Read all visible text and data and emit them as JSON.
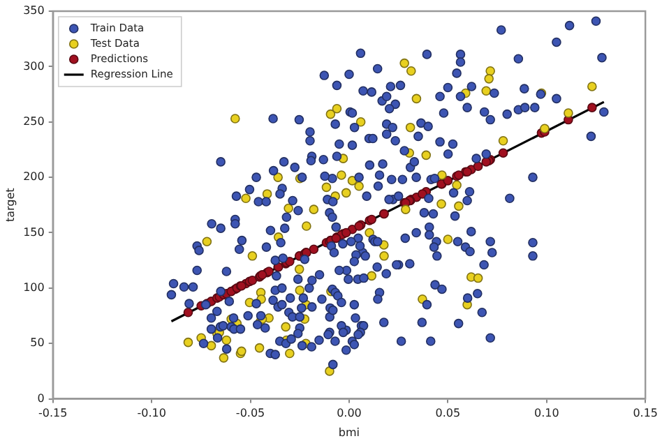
{
  "chart_data": {
    "type": "scatter",
    "xlabel": "bmi",
    "ylabel": "target",
    "xlim": [
      -0.15,
      0.15
    ],
    "ylim": [
      0,
      350
    ],
    "xticks": [
      {
        "value": -0.15,
        "label": "-0.15"
      },
      {
        "value": -0.1,
        "label": "-0.10"
      },
      {
        "value": -0.05,
        "label": "-0.05"
      },
      {
        "value": 0,
        "label": "0.00"
      },
      {
        "value": 0.05,
        "label": "0.05"
      },
      {
        "value": 0.1,
        "label": "0.10"
      },
      {
        "value": 0.15,
        "label": "0.15"
      }
    ],
    "yticks": [
      0,
      50,
      100,
      150,
      200,
      250,
      300,
      350
    ],
    "grid": false,
    "legend": "top left",
    "series": [
      {
        "name": "Train Data",
        "marker": "circle",
        "color": "#3d55b3",
        "x": [
          0.077,
          0.1116,
          0.125,
          0.105,
          0.128,
          0.0857,
          0.0058,
          0.0394,
          0.0564,
          0.0564,
          0.0144,
          0.0545,
          0.0,
          -0.0062,
          0.021,
          0.026,
          0.0071,
          0.0114,
          0.05,
          0.062,
          0.0735,
          0.0887,
          0.105,
          0.097,
          0.0167,
          0.019,
          0.0234,
          0.046,
          0.0564,
          0.0204,
          0.0005,
          0.0016,
          0.0479,
          0.0598,
          0.0685,
          0.0715,
          0.08,
          0.0857,
          0.089,
          0.094,
          0.129,
          -0.007,
          0.0027,
          0.019,
          0.022,
          0.0364,
          0.04,
          0.0101,
          0.012,
          0.0234,
          0.019,
          0.035,
          0.046,
          0.0525,
          -0.005,
          0.0016,
          0.028,
          0.0501,
          0.0694,
          0.0644,
          0.1225,
          -0.0062,
          0.0104,
          0.017,
          0.031,
          0.033,
          0.0415,
          0.0433,
          0.0154,
          0.0215,
          0.027,
          0.034,
          0.005,
          -0.0085,
          0.093,
          0.0813,
          0.0147,
          0.0089,
          0.0222,
          0.0202,
          0.025,
          0.0403,
          0.0529,
          0.061,
          0.0598,
          0.0536,
          0.038,
          0.0426,
          -0.0126,
          -0.0385,
          -0.0253,
          -0.0198,
          -0.0198,
          -0.0189,
          -0.0193,
          -0.013,
          -0.065,
          -0.0571,
          -0.0504,
          -0.047,
          -0.0459,
          -0.042,
          -0.0383,
          -0.033,
          -0.0339,
          -0.0275,
          -0.035,
          -0.0286,
          -0.0258,
          -0.0238,
          -0.0123,
          -0.011,
          -0.0082,
          -0.0099,
          -0.09,
          -0.0889,
          -0.0836,
          -0.079,
          -0.081,
          -0.077,
          -0.076,
          -0.077,
          -0.0696,
          -0.065,
          -0.0577,
          -0.0577,
          -0.0543,
          -0.0556,
          -0.0621,
          -0.065,
          -0.0607,
          -0.0726,
          -0.0669,
          -0.0698,
          -0.0652,
          -0.0698,
          -0.0737,
          -0.0666,
          -0.062,
          -0.0638,
          -0.0597,
          -0.0583,
          -0.055,
          -0.0585,
          -0.0512,
          -0.0447,
          -0.0425,
          -0.047,
          -0.0464,
          -0.0398,
          -0.0419,
          -0.0346,
          -0.0326,
          -0.0317,
          -0.0374,
          -0.0368,
          -0.0374,
          -0.0385,
          -0.036,
          -0.0335,
          -0.034,
          -0.034,
          -0.0298,
          -0.0305,
          -0.0287,
          -0.0259,
          -0.0232,
          -0.0241,
          -0.0225,
          -0.0202,
          -0.0188,
          -0.015,
          -0.0138,
          -0.0188,
          -0.025,
          -0.025,
          -0.0259,
          -0.0351,
          -0.032,
          -0.0399,
          -0.0374,
          -0.0293,
          -0.0238,
          -0.019,
          -0.0152,
          -0.0098,
          -0.009,
          0.0618,
          0.0406,
          0.0406,
          0.0442,
          0.043,
          0.0445,
          0.034,
          0.0284,
          0.025,
          0.024,
          0.0307,
          0.055,
          0.0589,
          0.0612,
          0.0683,
          0.0715,
          0.0724,
          0.093,
          0.093,
          0.0435,
          0.047,
          0.06,
          0.065,
          0.0673,
          0.0394,
          0.0369,
          0.0176,
          0.0264,
          0.0413,
          0.0554,
          0.0715,
          0.0154,
          0.0145,
          0.0188,
          0.0142,
          0.0121,
          0.013,
          0.0144,
          0.0069,
          0.0082,
          0.0046,
          0.0055,
          0.001,
          0.0035,
          0.0026,
          -0.0013,
          -0.0004,
          0.0044,
          0.0074,
          -0.0032,
          -0.0076,
          -0.005,
          -0.0085,
          -0.007,
          -0.0057,
          -0.0039,
          0.0026,
          -0.0096,
          -0.0082,
          0.0032,
          0.0062,
          0.0073,
          0.0057,
          0.0046,
          -0.0015,
          -0.0039,
          -0.003,
          0.0016,
          0.0026,
          -0.0015,
          -0.0071,
          -0.0099,
          -0.0106,
          -0.0082,
          -0.0085,
          -0.0066
        ],
        "values": [
          333,
          337,
          341,
          322,
          308,
          307,
          312,
          311,
          311,
          304,
          298,
          294,
          293,
          283,
          282,
          283,
          278,
          277,
          281,
          282,
          276,
          280,
          271,
          275,
          269,
          273,
          266,
          273,
          273,
          262,
          259,
          258,
          258,
          263,
          259,
          252,
          257,
          261,
          263,
          263,
          259,
          248,
          245,
          248,
          245,
          249,
          246,
          235,
          235,
          233,
          239,
          237,
          232,
          230,
          230,
          229,
          224,
          221,
          221,
          217,
          237,
          219,
          211,
          212,
          209,
          214,
          198,
          199,
          202,
          198,
          198,
          200,
          200,
          199,
          200,
          181,
          192,
          183,
          180,
          180,
          183,
          181,
          186,
          187,
          179,
          165,
          168,
          167,
          292,
          253,
          252,
          241,
          233,
          219,
          215,
          216,
          214,
          183,
          189,
          200,
          178,
          178,
          206,
          214,
          190,
          209,
          185,
          179,
          170,
          200,
          201,
          180,
          178,
          168,
          94,
          104,
          101,
          101,
          86,
          138,
          134,
          116,
          158,
          154,
          162,
          158,
          143,
          135,
          115,
          97,
          88,
          85,
          79,
          73,
          65,
          63,
          50,
          55,
          45,
          66,
          65,
          63,
          63,
          73,
          75,
          75,
          64,
          86,
          67,
          152,
          137,
          141,
          154,
          164,
          125,
          111,
          98,
          89,
          83,
          127,
          100,
          85,
          91,
          78,
          74,
          108,
          91,
          82,
          126,
          100,
          107,
          112,
          90,
          83,
          74,
          64,
          59,
          52,
          50,
          41,
          40,
          54,
          48,
          47,
          53,
          74,
          138,
          151,
          155,
          148,
          142,
          137,
          129,
          150,
          145,
          121,
          121,
          122,
          142,
          137,
          133,
          121,
          142,
          132,
          141,
          129,
          103,
          99,
          91,
          95,
          78,
          85,
          69,
          69,
          52,
          52,
          68,
          55,
          96,
          90,
          113,
          119,
          144,
          142,
          142,
          132,
          129,
          145,
          138,
          142,
          130,
          124,
          116,
          108,
          108,
          109,
          140,
          132,
          116,
          99,
          96,
          93,
          87,
          85,
          82,
          80,
          73,
          66,
          66,
          60,
          58,
          62,
          66,
          60,
          52,
          49,
          44,
          52,
          60,
          58,
          31,
          164,
          155
        ]
      },
      {
        "name": "Test Data",
        "marker": "circle",
        "color": "#e8d020",
        "x": [
          0.028,
          0.0314,
          0.0715,
          0.0708,
          0.0694,
          0.059,
          0.0341,
          0.0974,
          0.123,
          -0.0094,
          -0.0062,
          0.0059,
          0.031,
          0.111,
          0.099,
          0.078,
          -0.003,
          0.039,
          0.0305,
          -0.0039,
          0.0016,
          0.005,
          -0.0015,
          -0.007,
          0.047,
          0.0545,
          0.0467,
          0.0555,
          0.0286,
          -0.0577,
          -0.036,
          -0.0249,
          -0.0523,
          -0.0415,
          -0.0307,
          -0.0179,
          -0.0115,
          -0.072,
          -0.0815,
          -0.0749,
          -0.0698,
          -0.0669,
          -0.0657,
          -0.0635,
          -0.0621,
          -0.0597,
          -0.0568,
          -0.055,
          -0.0545,
          -0.0504,
          -0.049,
          -0.0447,
          -0.0445,
          -0.0454,
          -0.0449,
          -0.0406,
          -0.044,
          -0.0358,
          -0.0321,
          -0.0317,
          -0.0301,
          -0.025,
          -0.0252,
          -0.0225,
          -0.0218,
          -0.0219,
          -0.0216,
          -0.0099,
          -0.0092,
          -0.0066,
          0.0103,
          0.0176,
          0.0177,
          0.0114,
          0.05,
          0.0618,
          0.0653,
          0.0371,
          0.0598
        ],
        "values": [
          303,
          296,
          296,
          289,
          278,
          276,
          271,
          276,
          282,
          257,
          262,
          250,
          245,
          258,
          244,
          233,
          217,
          220,
          222,
          202,
          197,
          192,
          186,
          183,
          202,
          193,
          176,
          174,
          171,
          253,
          200,
          199,
          181,
          185,
          172,
          171,
          191,
          142,
          51,
          55,
          48,
          59,
          60,
          37,
          53,
          72,
          68,
          41,
          43,
          87,
          129,
          96,
          90,
          46,
          70,
          73,
          72,
          146,
          65,
          53,
          41,
          98,
          117,
          72,
          85,
          50,
          156,
          25,
          97,
          155,
          150,
          139,
          129,
          111,
          144,
          110,
          109,
          90,
          85
        ]
      },
      {
        "name": "Predictions",
        "marker": "circle",
        "color": "#a01020",
        "x": [
          0.028,
          0.0314,
          0.0715,
          0.0708,
          0.0694,
          0.059,
          0.0341,
          0.0974,
          0.123,
          -0.0094,
          -0.0062,
          0.0059,
          0.031,
          0.111,
          0.099,
          0.078,
          -0.003,
          0.039,
          0.0305,
          -0.0039,
          0.0016,
          0.005,
          -0.0015,
          0.047,
          0.0545,
          0.0467,
          0.0555,
          0.0286,
          -0.0577,
          -0.036,
          -0.0523,
          -0.0415,
          -0.0179,
          -0.0115,
          -0.072,
          -0.0815,
          -0.0749,
          -0.0698,
          -0.0669,
          -0.0657,
          -0.0635,
          -0.0621,
          -0.0597,
          -0.0568,
          -0.055,
          -0.0545,
          -0.0504,
          -0.049,
          -0.0454,
          -0.0449,
          -0.0406,
          -0.044,
          -0.0358,
          -0.0321,
          -0.0317,
          -0.0301,
          -0.025,
          -0.0252,
          -0.0225,
          -0.0218,
          -0.0219,
          -0.0216,
          -0.0099,
          -0.0092,
          -0.0066,
          0.0103,
          0.0176,
          0.0177,
          0.0114,
          0.05,
          0.0618,
          0.0653,
          0.0371,
          0.0598
        ],
        "values": [
          177,
          180,
          216,
          215,
          214,
          205,
          182,
          240,
          263,
          143,
          146,
          157,
          179,
          252,
          241,
          222,
          149,
          187,
          179,
          148,
          153,
          156,
          150,
          194,
          201,
          194,
          202,
          177,
          99,
          119,
          104,
          114,
          135,
          141,
          86,
          78,
          84,
          88,
          91,
          92,
          94,
          95,
          97,
          100,
          102,
          102,
          106,
          107,
          110,
          111,
          115,
          112,
          119,
          122,
          123,
          124,
          129,
          129,
          131,
          132,
          132,
          132,
          142,
          143,
          145,
          161,
          167,
          167,
          162,
          197,
          207,
          210,
          185,
          205
        ]
      },
      {
        "name": "Regression Line",
        "type": "line",
        "color": "#000000",
        "x": [
          -0.09,
          0.129
        ],
        "values": [
          70,
          268
        ]
      }
    ]
  }
}
